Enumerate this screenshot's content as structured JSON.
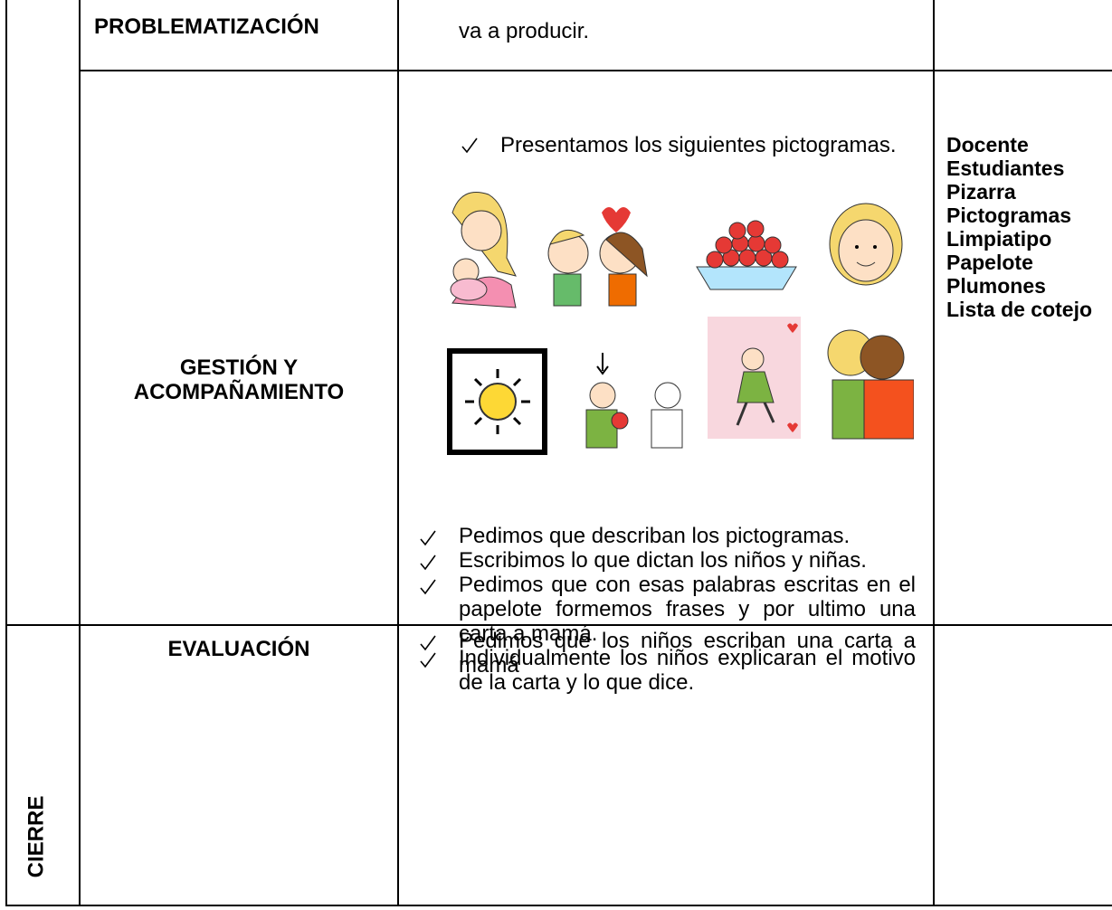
{
  "table": {
    "rows": [
      {
        "stage": "PROBLEMATIZACIÓN",
        "steps": [
          "va a producir."
        ]
      },
      {
        "stage": "GESTIÓN Y ACOMPAÑAMIENTO",
        "intro": "Presentamos los siguientes pictogramas.",
        "steps": [
          "Pedimos que describan los pictogramas.",
          "Escribimos lo que dictan los niños y niñas.",
          "Pedimos que con esas palabras escritas en el papelote formemos frases y por ultimo una carta a mamá.",
          "Individualmente los niños explicaran el motivo de la carta y lo que dice."
        ],
        "resources": [
          "Docente",
          "Estudiantes",
          "Pizarra",
          "Pictogramas",
          "Limpiatipo",
          "Papelote",
          "Plumones",
          "Lista de cotejo"
        ]
      },
      {
        "phase": "CIERRE",
        "stage": "EVALUACIÓN",
        "steps": [
          "Pedimos que los niños escriban una carta a mamá"
        ]
      }
    ]
  }
}
